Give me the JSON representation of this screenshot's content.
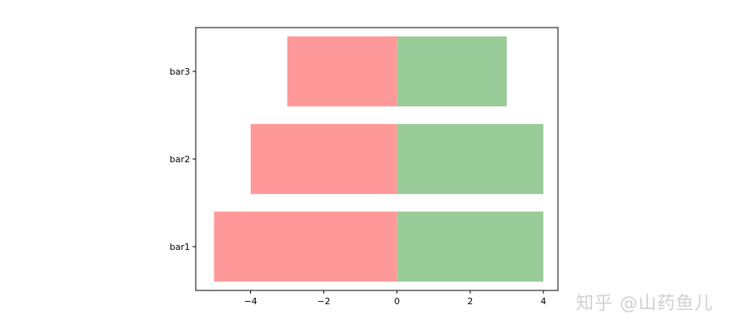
{
  "chart_data": {
    "type": "bar",
    "orientation": "horizontal",
    "stacking": "diverging",
    "categories": [
      "bar1",
      "bar2",
      "bar3"
    ],
    "series": [
      {
        "values": [
          -5,
          -4,
          -3
        ],
        "color": "#ff9999"
      },
      {
        "values": [
          4,
          4,
          3
        ],
        "color": "#99cc99"
      }
    ],
    "xlim": [
      -5.5,
      4.4
    ],
    "xticks": [
      -4,
      -2,
      0,
      2,
      4
    ],
    "xtick_labels": [
      "−4",
      "−2",
      "0",
      "2",
      "4"
    ],
    "title": "",
    "xlabel": "",
    "ylabel": "",
    "grid": false,
    "legend": "none"
  },
  "watermark": {
    "text": "知乎 @山药鱼儿"
  }
}
